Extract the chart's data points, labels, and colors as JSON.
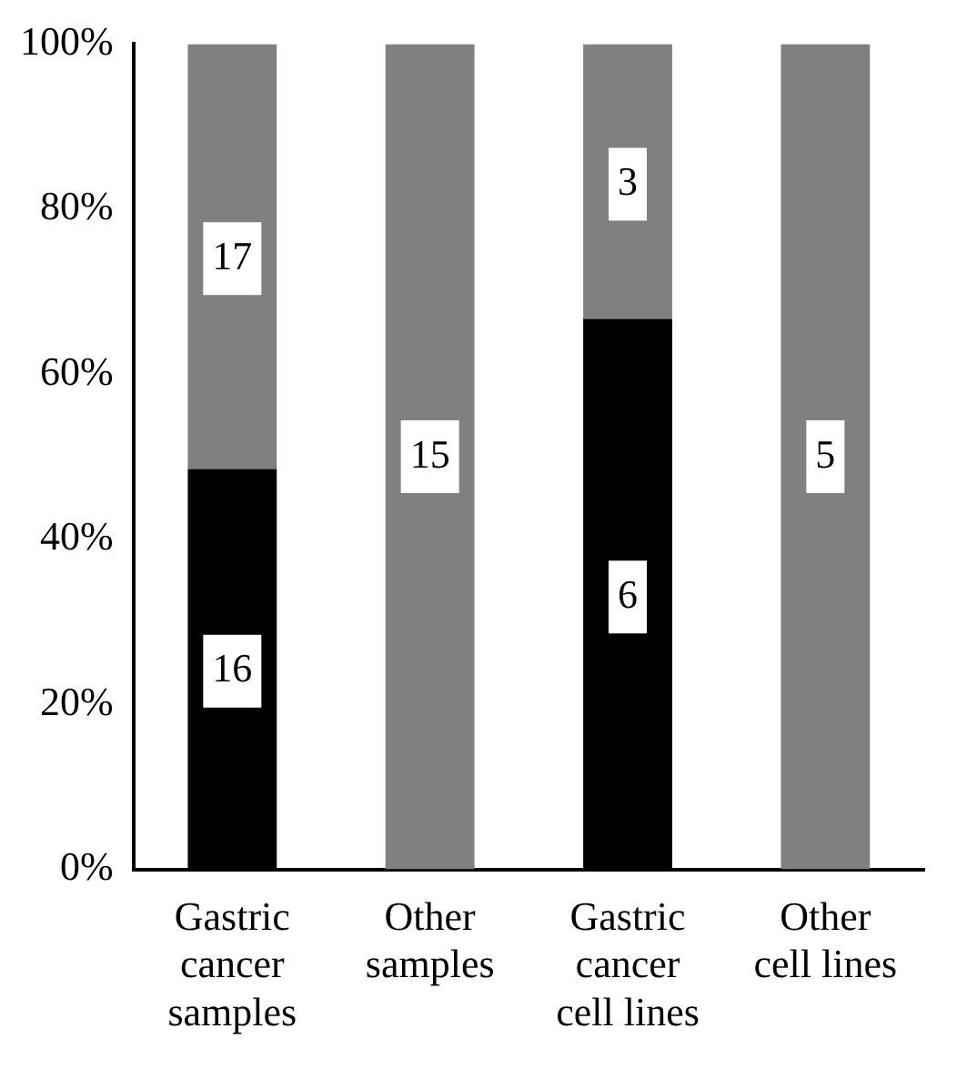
{
  "chart_data": {
    "type": "bar",
    "stacked": true,
    "categories": [
      "Gastric cancer samples",
      "Other samples",
      "Gastric cancer cell lines",
      "Other cell lines"
    ],
    "series": [
      {
        "color": "#000000",
        "values": [
          48.5,
          0,
          66.7,
          0
        ]
      },
      {
        "color": "#808080",
        "values": [
          51.5,
          100,
          33.3,
          100
        ]
      }
    ],
    "annotations": [
      {
        "text": "16",
        "x": "Gastric cancer samples",
        "y": 24
      },
      {
        "text": "17",
        "x": "Gastric cancer samples",
        "y": 74
      },
      {
        "text": "15",
        "x": "Other samples",
        "y": 50
      },
      {
        "text": "6",
        "x": "Gastric cancer cell lines",
        "y": 33
      },
      {
        "text": "3",
        "x": "Gastric cancer cell lines",
        "y": 83
      },
      {
        "text": "5",
        "x": "Other cell lines",
        "y": 50
      }
    ],
    "ylim": [
      0,
      100
    ],
    "yticks": [
      {
        "value": 0,
        "label": "0%"
      },
      {
        "value": 20,
        "label": "20%"
      },
      {
        "value": 40,
        "label": "40%"
      },
      {
        "value": 60,
        "label": "60%"
      },
      {
        "value": 80,
        "label": "80%"
      },
      {
        "value": 100,
        "label": "100%"
      }
    ],
    "grid": false,
    "legend": false
  }
}
